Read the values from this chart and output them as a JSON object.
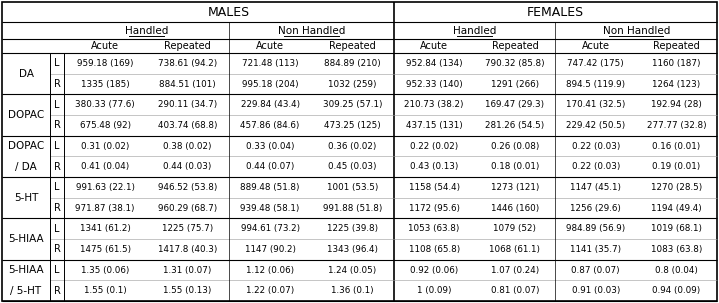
{
  "rows": [
    {
      "label": "DA",
      "label2": "",
      "sub": [
        "L",
        "R"
      ],
      "data": [
        [
          "959.18 (169)",
          "738.61 (94.2)",
          "721.48 (113)",
          "884.89 (210)",
          "952.84 (134)",
          "790.32 (85.8)",
          "747.42 (175)",
          "1160 (187)"
        ],
        [
          "1335 (185)",
          "884.51 (101)",
          "995.18 (204)",
          "1032 (259)",
          "952.33 (140)",
          "1291 (266)",
          "894.5 (119.9)",
          "1264 (123)"
        ]
      ]
    },
    {
      "label": "DOPAC",
      "label2": "",
      "sub": [
        "L",
        "R"
      ],
      "data": [
        [
          "380.33 (77.6)",
          "290.11 (34.7)",
          "229.84 (43.4)",
          "309.25 (57.1)",
          "210.73 (38.2)",
          "169.47 (29.3)",
          "170.41 (32.5)",
          "192.94 (28)"
        ],
        [
          "675.48 (92)",
          "403.74 (68.8)",
          "457.86 (84.6)",
          "473.25 (125)",
          "437.15 (131)",
          "281.26 (54.5)",
          "229.42 (50.5)",
          "277.77 (32.8)"
        ]
      ]
    },
    {
      "label": "DOPAC",
      "label2": "/ DA",
      "sub": [
        "L",
        "R"
      ],
      "data": [
        [
          "0.31 (0.02)",
          "0.38 (0.02)",
          "0.33 (0.04)",
          "0.36 (0.02)",
          "0.22 (0.02)",
          "0.26 (0.08)",
          "0.22 (0.03)",
          "0.16 (0.01)"
        ],
        [
          "0.41 (0.04)",
          "0.44 (0.03)",
          "0.44 (0.07)",
          "0.45 (0.03)",
          "0.43 (0.13)",
          "0.18 (0.01)",
          "0.22 (0.03)",
          "0.19 (0.01)"
        ]
      ]
    },
    {
      "label": "5-HT",
      "label2": "",
      "sub": [
        "L",
        "R"
      ],
      "data": [
        [
          "991.63 (22.1)",
          "946.52 (53.8)",
          "889.48 (51.8)",
          "1001 (53.5)",
          "1158 (54.4)",
          "1273 (121)",
          "1147 (45.1)",
          "1270 (28.5)"
        ],
        [
          "971.87 (38.1)",
          "960.29 (68.7)",
          "939.48 (58.1)",
          "991.88 (51.8)",
          "1172 (95.6)",
          "1446 (160)",
          "1256 (29.6)",
          "1194 (49.4)"
        ]
      ]
    },
    {
      "label": "5-HIAA",
      "label2": "",
      "sub": [
        "L",
        "R"
      ],
      "data": [
        [
          "1341 (61.2)",
          "1225 (75.7)",
          "994.61 (73.2)",
          "1225 (39.8)",
          "1053 (63.8)",
          "1079 (52)",
          "984.89 (56.9)",
          "1019 (68.1)"
        ],
        [
          "1475 (61.5)",
          "1417.8 (40.3)",
          "1147 (90.2)",
          "1343 (96.4)",
          "1108 (65.8)",
          "1068 (61.1)",
          "1141 (35.7)",
          "1083 (63.8)"
        ]
      ]
    },
    {
      "label": "5-HIAA",
      "label2": "/ 5-HT",
      "sub": [
        "L",
        "R"
      ],
      "data": [
        [
          "1.35 (0.06)",
          "1.31 (0.07)",
          "1.12 (0.06)",
          "1.24 (0.05)",
          "0.92 (0.06)",
          "1.07 (0.24)",
          "0.87 (0.07)",
          "0.8 (0.04)"
        ],
        [
          "1.55 (0.1)",
          "1.55 (0.13)",
          "1.22 (0.07)",
          "1.36 (0.1)",
          "1 (0.09)",
          "0.81 (0.07)",
          "0.91 (0.03)",
          "0.94 (0.09)"
        ]
      ]
    }
  ],
  "header1_males": "MALES",
  "header1_females": "FEMALES",
  "header2": [
    "Handled",
    "Non Handled",
    "Handled",
    "Non Handled"
  ],
  "header3": [
    "Acute",
    "Repeated",
    "Acute",
    "Repeated",
    "Acute",
    "Repeated",
    "Acute",
    "Repeated"
  ],
  "figsize": [
    7.19,
    3.03
  ],
  "dpi": 100
}
